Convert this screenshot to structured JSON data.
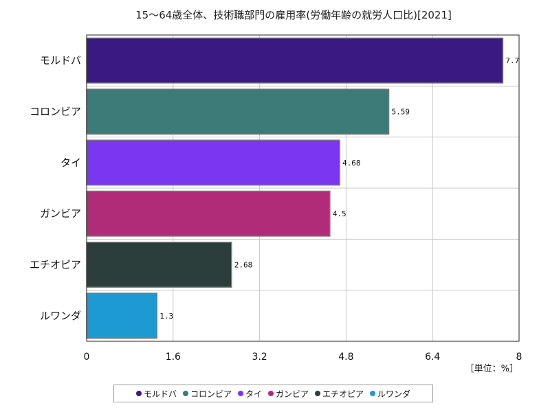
{
  "chart_data": {
    "type": "bar",
    "orientation": "horizontal",
    "title": "15～64歳全体、技術職部門の雇用率(労働年齢の就労人口比)[2021]",
    "unit": "［単位：%］",
    "categories": [
      "モルドバ",
      "コロンビア",
      "タイ",
      "ガンビア",
      "エチオピア",
      "ルワンダ"
    ],
    "values": [
      7.7,
      5.59,
      4.68,
      4.5,
      2.68,
      1.3
    ],
    "value_labels": [
      "7.7",
      "5.59",
      "4.68",
      "4.5",
      "2.68",
      "1.3"
    ],
    "colors": [
      "#3a1a82",
      "#3b7b78",
      "#7a36f0",
      "#b02c78",
      "#2c3e3c",
      "#1e9ad2"
    ],
    "xlim": [
      0,
      8
    ],
    "xticks": [
      0,
      1.6,
      3.2,
      4.8,
      6.4,
      8
    ],
    "xtick_labels": [
      "0",
      "1.6",
      "3.2",
      "4.8",
      "6.4",
      "8"
    ],
    "grid": true,
    "legend_position": "bottom"
  }
}
